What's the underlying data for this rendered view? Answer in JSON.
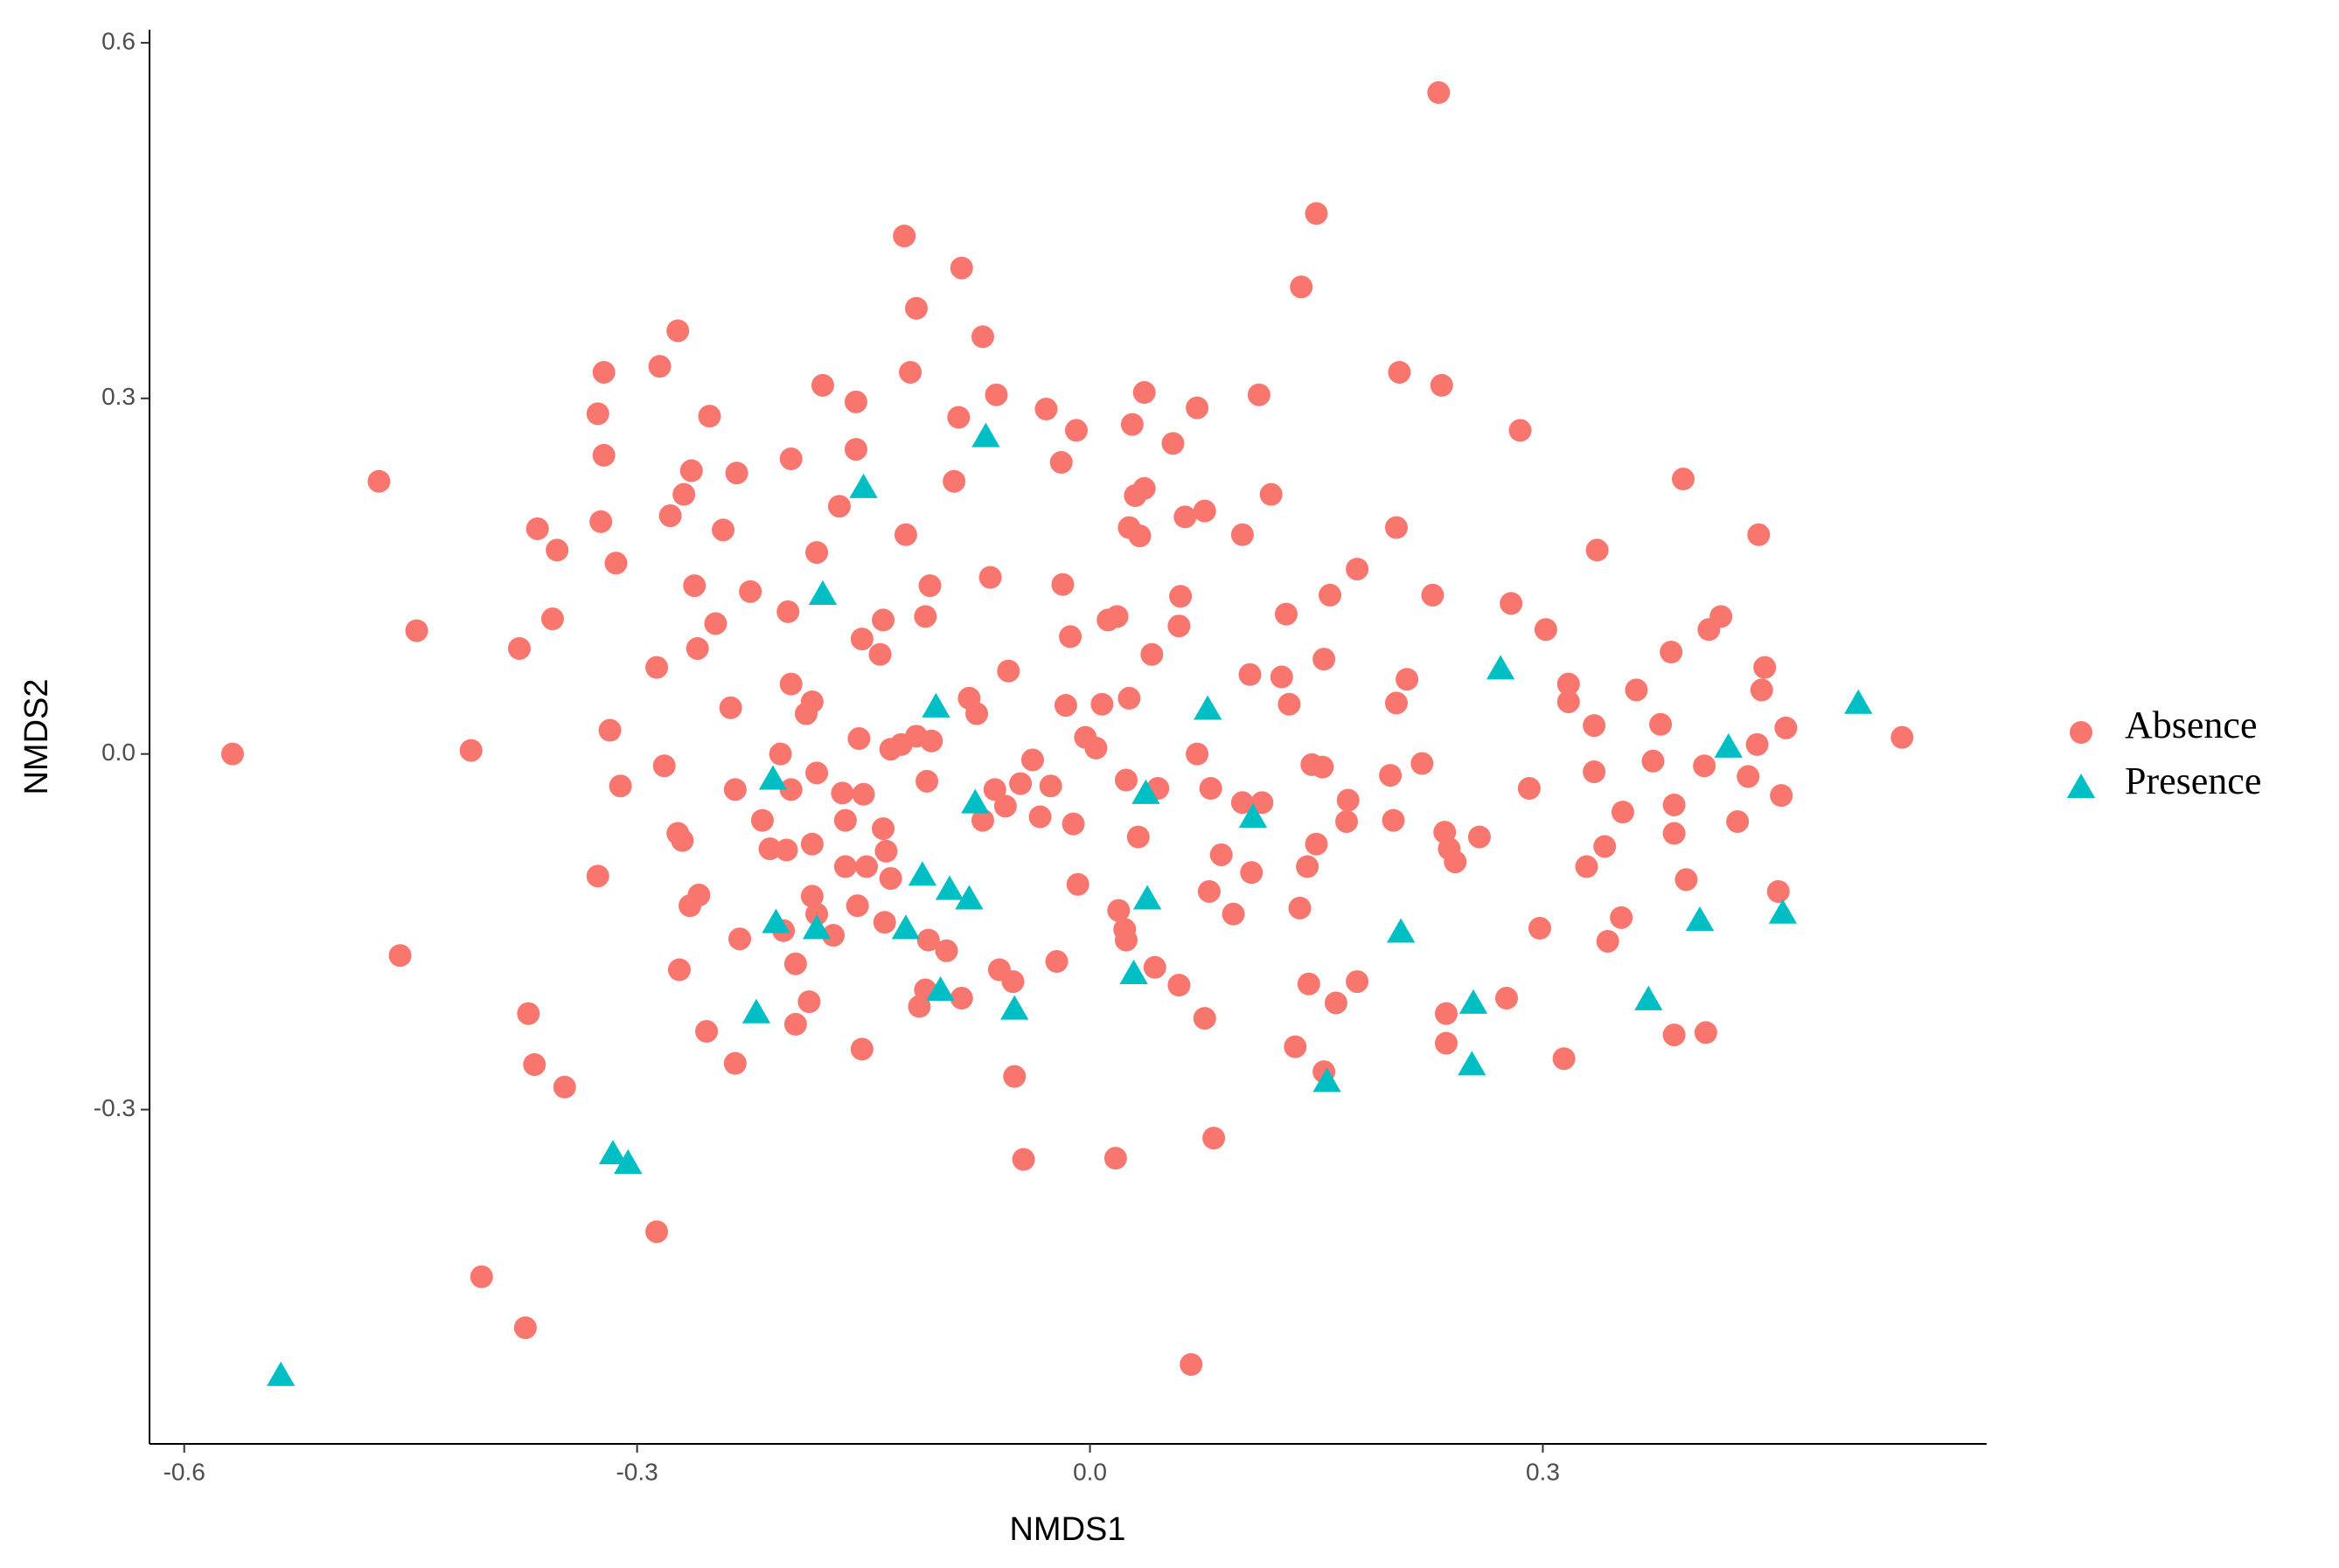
{
  "chart_data": {
    "type": "scatter",
    "x_label": "NMDS1",
    "y_label": "NMDS2",
    "xlim": [
      -0.623,
      0.594
    ],
    "ylim": [
      -0.582,
      0.611
    ],
    "xticks": [
      -0.6,
      -0.3,
      {
        "value": 0,
        "label": "0.0"
      },
      0.3
    ],
    "yticks": [
      -0.3,
      {
        "value": 0,
        "label": "0.0"
      },
      0.3,
      0.6
    ],
    "grid": false,
    "legend": "right",
    "series": [
      {
        "name": "Absence",
        "color": "#F8766D",
        "shape": "circle",
        "x": [
          0.231,
          0.15,
          0.14,
          -0.123,
          -0.085,
          -0.115,
          -0.071,
          -0.273,
          -0.285,
          -0.322,
          -0.326,
          -0.322,
          -0.324,
          -0.471,
          -0.446,
          -0.568,
          -0.41,
          -0.457,
          -0.378,
          -0.356,
          -0.366,
          -0.353,
          -0.314,
          -0.318,
          -0.311,
          -0.326,
          -0.287,
          -0.282,
          -0.273,
          -0.27,
          -0.265,
          -0.272,
          -0.372,
          -0.368,
          -0.348,
          -0.287,
          -0.403,
          -0.374,
          -0.278,
          -0.269,
          -0.264,
          -0.252,
          -0.234,
          -0.243,
          -0.262,
          -0.26,
          -0.248,
          -0.238,
          -0.225,
          -0.235,
          -0.259,
          -0.254,
          -0.232,
          -0.235,
          -0.198,
          -0.177,
          -0.155,
          -0.155,
          -0.166,
          -0.181,
          -0.2,
          -0.198,
          -0.184,
          -0.188,
          -0.205,
          -0.198,
          -0.217,
          -0.212,
          -0.201,
          -0.184,
          -0.181,
          -0.203,
          -0.195,
          -0.186,
          -0.195,
          -0.184,
          -0.181,
          -0.17,
          -0.151,
          -0.153,
          -0.164,
          -0.162,
          -0.162,
          -0.148,
          -0.154,
          -0.15,
          -0.151,
          -0.139,
          -0.137,
          -0.122,
          -0.119,
          -0.106,
          -0.109,
          -0.137,
          -0.135,
          -0.132,
          -0.125,
          -0.115,
          -0.105,
          -0.108,
          -0.132,
          -0.136,
          -0.107,
          -0.095,
          -0.113,
          -0.109,
          -0.085,
          -0.09,
          -0.087,
          -0.062,
          -0.066,
          -0.08,
          -0.075,
          -0.054,
          -0.071,
          -0.063,
          -0.056,
          -0.046,
          -0.038,
          -0.033,
          -0.026,
          -0.011,
          -0.06,
          -0.051,
          -0.05,
          -0.044,
          -0.022,
          -0.029,
          -0.009,
          -0.019,
          -0.018,
          -0.013,
          -0.016,
          -0.003,
          0.004,
          0.008,
          -0.008,
          0.012,
          0.018,
          0.026,
          0.024,
          0.036,
          0.028,
          0.036,
          0.03,
          0.026,
          0.033,
          0.055,
          0.071,
          0.063,
          0.076,
          0.06,
          0.059,
          0.041,
          0.032,
          0.045,
          0.071,
          0.08,
          0.019,
          0.023,
          0.024,
          0.017,
          0.043,
          0.059,
          0.076,
          0.079,
          0.087,
          0.095,
          0.082,
          0.067,
          0.101,
          0.112,
          0.12,
          0.106,
          0.101,
          0.114,
          0.107,
          0.127,
          0.13,
          0.132,
          0.139,
          0.145,
          0.147,
          0.154,
          0.15,
          0.144,
          0.155,
          0.159,
          0.177,
          0.171,
          0.17,
          0.163,
          0.177,
          0.136,
          0.155,
          0.205,
          0.233,
          0.203,
          0.227,
          0.21,
          0.203,
          0.199,
          0.201,
          0.22,
          0.235,
          0.238,
          0.242,
          0.258,
          0.236,
          0.236,
          0.276,
          0.285,
          0.279,
          0.302,
          0.291,
          0.298,
          0.314,
          0.317,
          0.317,
          0.336,
          0.334,
          0.334,
          0.329,
          0.341,
          0.343,
          0.353,
          0.352,
          0.362,
          0.378,
          0.373,
          0.385,
          0.387,
          0.387,
          0.395,
          0.387,
          0.408,
          0.393,
          0.41,
          0.418,
          0.407,
          0.436,
          0.429,
          0.443,
          0.447,
          0.445,
          0.442,
          0.461,
          0.458,
          0.456,
          0.538
        ],
        "values": [
          0.558,
          0.456,
          0.394,
          0.437,
          0.41,
          0.376,
          0.352,
          0.357,
          0.327,
          0.322,
          0.287,
          0.252,
          0.196,
          0.23,
          0.104,
          0.0,
          0.003,
          -0.17,
          0.089,
          0.114,
          0.19,
          0.172,
          0.161,
          0.02,
          -0.027,
          -0.103,
          0.073,
          -0.01,
          -0.067,
          -0.073,
          -0.128,
          -0.182,
          -0.219,
          -0.262,
          -0.281,
          -0.403,
          -0.441,
          -0.484,
          0.201,
          0.219,
          0.239,
          0.285,
          0.237,
          0.189,
          0.142,
          0.089,
          0.11,
          0.039,
          0.137,
          -0.03,
          -0.119,
          -0.234,
          -0.156,
          -0.261,
          0.249,
          0.311,
          0.297,
          0.257,
          0.209,
          0.17,
          0.12,
          0.059,
          0.044,
          0.034,
          0.0,
          -0.03,
          -0.056,
          -0.08,
          -0.081,
          -0.076,
          -0.016,
          -0.149,
          -0.177,
          -0.209,
          -0.228,
          -0.12,
          -0.135,
          -0.153,
          -0.249,
          0.013,
          -0.033,
          -0.056,
          -0.095,
          -0.095,
          -0.128,
          -0.034,
          0.097,
          0.084,
          0.113,
          0.185,
          0.322,
          0.142,
          0.116,
          -0.063,
          -0.082,
          0.004,
          0.008,
          0.015,
          0.011,
          -0.023,
          -0.105,
          -0.142,
          -0.157,
          -0.166,
          -0.213,
          -0.199,
          -0.206,
          0.23,
          0.284,
          0.303,
          0.149,
          0.047,
          0.034,
          0.07,
          -0.056,
          -0.03,
          -0.044,
          -0.025,
          -0.005,
          -0.053,
          -0.027,
          -0.059,
          -0.182,
          -0.192,
          -0.272,
          -0.342,
          -0.175,
          0.291,
          0.273,
          0.246,
          0.143,
          0.099,
          0.041,
          0.014,
          0.005,
          0.042,
          -0.11,
          0.113,
          0.116,
          0.047,
          -0.022,
          0.305,
          0.278,
          0.224,
          0.218,
          0.191,
          0.184,
          0.262,
          0.292,
          0.2,
          0.205,
          0.133,
          0.108,
          0.084,
          -0.07,
          -0.029,
          0.0,
          -0.029,
          -0.132,
          -0.148,
          -0.157,
          -0.341,
          -0.18,
          -0.195,
          -0.223,
          -0.116,
          -0.085,
          -0.135,
          -0.324,
          -0.515,
          0.185,
          0.303,
          0.219,
          0.067,
          -0.041,
          -0.041,
          -0.1,
          0.065,
          0.118,
          0.042,
          -0.13,
          -0.194,
          -0.009,
          -0.011,
          -0.076,
          -0.095,
          0.08,
          0.134,
          0.156,
          -0.039,
          -0.057,
          -0.21,
          -0.192,
          -0.247,
          -0.268,
          0.322,
          0.311,
          0.191,
          0.134,
          0.063,
          0.043,
          -0.018,
          -0.056,
          -0.008,
          -0.066,
          -0.08,
          -0.091,
          -0.07,
          -0.219,
          -0.244,
          -0.206,
          0.273,
          0.127,
          0.105,
          -0.029,
          -0.147,
          -0.257,
          0.059,
          0.044,
          0.172,
          0.024,
          -0.015,
          -0.095,
          -0.078,
          -0.158,
          -0.049,
          -0.138,
          0.054,
          0.025,
          -0.006,
          0.086,
          -0.043,
          -0.067,
          -0.106,
          -0.237,
          -0.235,
          0.232,
          0.105,
          0.116,
          -0.01,
          -0.019,
          -0.057,
          0.185,
          0.073,
          0.054,
          0.008,
          0.022,
          -0.035,
          -0.116,
          0.014
        ]
      },
      {
        "name": "Presence",
        "color": "#00BFC4",
        "shape": "triangle",
        "x": [
          -0.536,
          -0.316,
          -0.306,
          -0.221,
          -0.21,
          -0.208,
          -0.181,
          -0.177,
          -0.15,
          -0.122,
          -0.111,
          -0.102,
          -0.099,
          -0.093,
          -0.08,
          -0.076,
          -0.069,
          -0.05,
          0.037,
          0.038,
          0.029,
          0.078,
          0.108,
          0.157,
          0.206,
          0.254,
          0.253,
          0.272,
          0.37,
          0.404,
          0.423,
          0.459,
          0.509
        ],
        "values": [
          -0.525,
          -0.338,
          -0.346,
          -0.219,
          -0.022,
          -0.143,
          -0.148,
          0.134,
          0.224,
          -0.148,
          -0.103,
          0.039,
          -0.2,
          -0.115,
          -0.123,
          -0.042,
          0.267,
          -0.216,
          -0.034,
          -0.123,
          -0.186,
          0.037,
          -0.054,
          -0.277,
          -0.151,
          -0.211,
          -0.263,
          0.071,
          -0.208,
          -0.141,
          0.005,
          -0.135,
          0.042
        ]
      }
    ]
  }
}
